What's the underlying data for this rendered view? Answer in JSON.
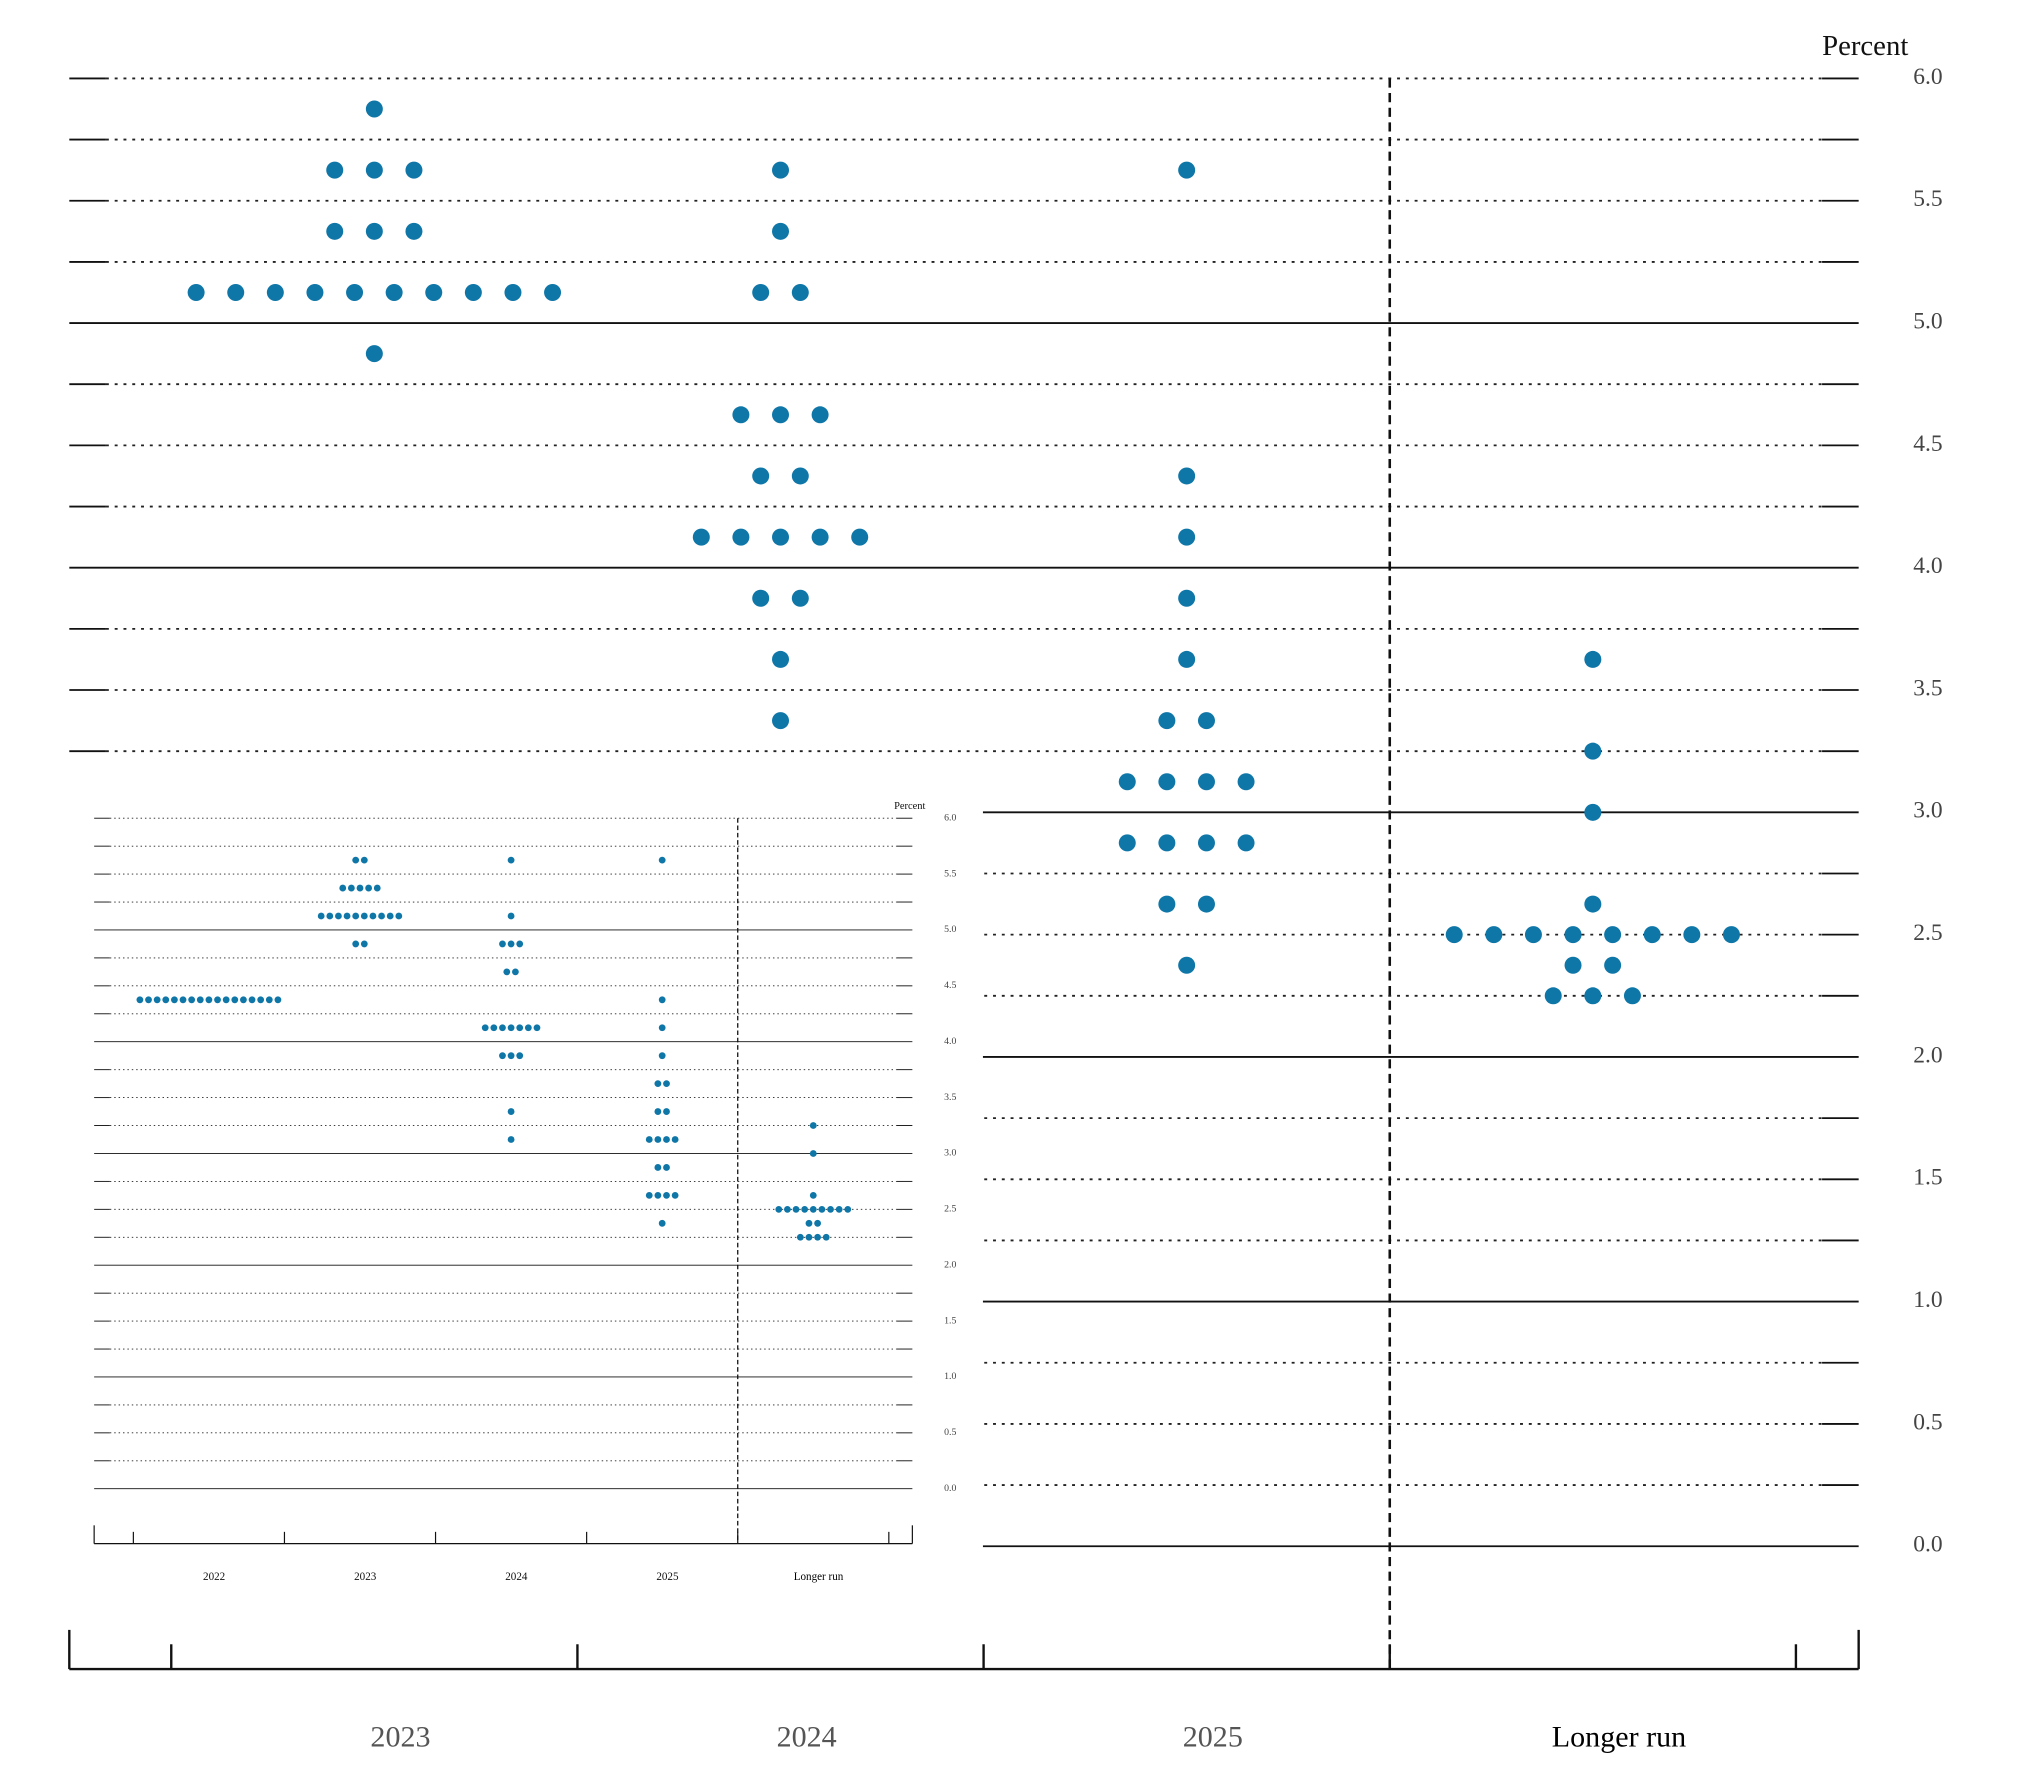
{
  "chart_data": [
    {
      "type": "dot",
      "y_label": "Percent",
      "color": "#0f76a8",
      "categories": [
        "2023",
        "2024",
        "2025",
        "Longer run"
      ],
      "values": [
        [
          5.875,
          5.625,
          5.625,
          5.625,
          5.375,
          5.375,
          5.375,
          5.125,
          5.125,
          5.125,
          5.125,
          5.125,
          5.125,
          5.125,
          5.125,
          5.125,
          5.125,
          4.875
        ],
        [
          5.625,
          5.375,
          5.125,
          5.125,
          4.625,
          4.625,
          4.625,
          4.375,
          4.375,
          4.125,
          4.125,
          4.125,
          4.125,
          4.125,
          3.875,
          3.875,
          3.625,
          3.375
        ],
        [
          5.625,
          4.375,
          4.125,
          3.875,
          3.625,
          3.375,
          3.375,
          3.125,
          3.125,
          3.125,
          3.125,
          2.875,
          2.875,
          2.875,
          2.875,
          2.625,
          2.625,
          2.375
        ],
        [
          3.625,
          3.25,
          3,
          2.625,
          2.5,
          2.5,
          2.5,
          2.5,
          2.5,
          2.5,
          2.5,
          2.5,
          2.375,
          2.375,
          2.25,
          2.25,
          2.25
        ]
      ],
      "ylim": [
        0,
        6
      ],
      "yticks": [
        {
          "value": 0,
          "label": "0.0"
        },
        {
          "value": 0.5,
          "label": "0.5"
        },
        {
          "value": 1,
          "label": "1.0"
        },
        {
          "value": 1.5,
          "label": "1.5"
        },
        {
          "value": 2,
          "label": "2.0"
        },
        {
          "value": 2.5,
          "label": "2.5"
        },
        {
          "value": 3,
          "label": "3.0"
        },
        {
          "value": 3.5,
          "label": "3.5"
        },
        {
          "value": 4,
          "label": "4.0"
        },
        {
          "value": 4.5,
          "label": "4.5"
        },
        {
          "value": 5,
          "label": "5.0"
        },
        {
          "value": 5.5,
          "label": "5.5"
        },
        {
          "value": 6,
          "label": "6.0"
        }
      ],
      "minor_yticks": [
        0.25,
        0.75,
        1.25,
        1.75,
        2.25,
        2.75,
        3.25,
        3.75,
        4.25,
        4.75,
        5.25,
        5.75
      ],
      "grid": true
    },
    {
      "type": "dot",
      "y_label": "Percent",
      "color": "#0f76a8",
      "categories": [
        "2022",
        "2023",
        "2024",
        "2025",
        "Longer run"
      ],
      "values": [
        [
          4.375,
          4.375,
          4.375,
          4.375,
          4.375,
          4.375,
          4.375,
          4.375,
          4.375,
          4.375,
          4.375,
          4.375,
          4.375,
          4.375,
          4.375,
          4.375,
          4.375
        ],
        [
          5.625,
          5.625,
          5.375,
          5.375,
          5.375,
          5.375,
          5.375,
          5.125,
          5.125,
          5.125,
          5.125,
          5.125,
          5.125,
          5.125,
          5.125,
          5.125,
          5.125,
          4.875,
          4.875
        ],
        [
          5.625,
          5.125,
          4.875,
          4.875,
          4.875,
          4.625,
          4.625,
          4.125,
          4.125,
          4.125,
          4.125,
          4.125,
          4.125,
          4.125,
          3.875,
          3.875,
          3.875,
          3.375,
          3.125
        ],
        [
          5.625,
          4.375,
          4.125,
          3.875,
          3.625,
          3.625,
          3.375,
          3.375,
          3.125,
          3.125,
          3.125,
          3.125,
          2.875,
          2.875,
          2.625,
          2.625,
          2.625,
          2.625,
          2.375
        ],
        [
          3.25,
          3,
          2.625,
          2.5,
          2.5,
          2.5,
          2.5,
          2.5,
          2.5,
          2.5,
          2.5,
          2.5,
          2.375,
          2.375,
          2.25,
          2.25,
          2.25,
          2.25
        ]
      ],
      "ylim": [
        0,
        6
      ],
      "yticks": [
        {
          "value": 0,
          "label": "0.0"
        },
        {
          "value": 0.5,
          "label": "0.5"
        },
        {
          "value": 1,
          "label": "1.0"
        },
        {
          "value": 1.5,
          "label": "1.5"
        },
        {
          "value": 2,
          "label": "2.0"
        },
        {
          "value": 2.5,
          "label": "2.5"
        },
        {
          "value": 3,
          "label": "3.0"
        },
        {
          "value": 3.5,
          "label": "3.5"
        },
        {
          "value": 4,
          "label": "4.0"
        },
        {
          "value": 4.5,
          "label": "4.5"
        },
        {
          "value": 5,
          "label": "5.0"
        },
        {
          "value": 5.5,
          "label": "5.5"
        },
        {
          "value": 6,
          "label": "6.0"
        }
      ],
      "minor_yticks": [
        0.25,
        0.75,
        1.25,
        1.75,
        2.25,
        2.75,
        3.25,
        3.75,
        4.25,
        4.75,
        5.25,
        5.75
      ],
      "grid": true
    }
  ]
}
